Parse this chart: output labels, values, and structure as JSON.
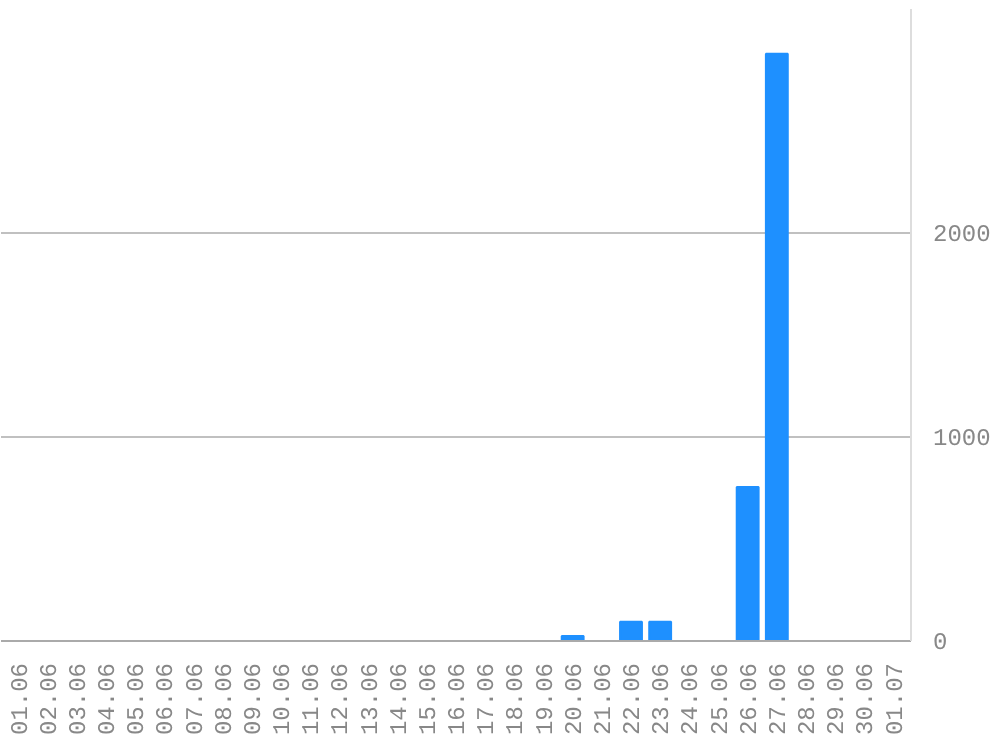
{
  "chart_data": {
    "type": "bar",
    "categories": [
      "01.06",
      "02.06",
      "03.06",
      "04.06",
      "05.06",
      "06.06",
      "07.06",
      "08.06",
      "09.06",
      "10.06",
      "11.06",
      "12.06",
      "13.06",
      "14.06",
      "15.06",
      "16.06",
      "17.06",
      "18.06",
      "19.06",
      "20.06",
      "21.06",
      "22.06",
      "23.06",
      "24.06",
      "25.06",
      "26.06",
      "27.06",
      "28.06",
      "29.06",
      "30.06",
      "01.07"
    ],
    "values": [
      0,
      0,
      0,
      0,
      0,
      0,
      0,
      0,
      0,
      0,
      0,
      0,
      0,
      0,
      0,
      0,
      0,
      0,
      0,
      25,
      0,
      95,
      95,
      0,
      0,
      755,
      2880,
      0,
      0,
      0,
      0
    ],
    "color": "#1e90ff",
    "ylim": [
      0,
      3100
    ],
    "yticks": [
      0,
      1000,
      2000
    ],
    "grid": "y"
  }
}
